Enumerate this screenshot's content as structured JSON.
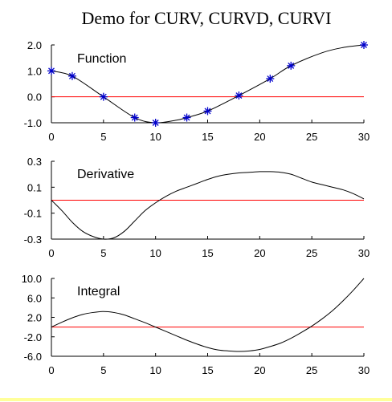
{
  "title": "Demo for CURV, CURVD, CURVI",
  "colors": {
    "axis": "#000000",
    "curve": "#000000",
    "zero_line": "#ff0000",
    "markers": "#0000cc"
  },
  "chart_data": [
    {
      "type": "line",
      "label": "Function",
      "markers": {
        "x": [
          0,
          2,
          5,
          8,
          10,
          13,
          15,
          18,
          21,
          23,
          30
        ],
        "y": [
          1.0,
          0.8,
          0.0,
          -0.8,
          -1.0,
          -0.8,
          -0.55,
          0.05,
          0.7,
          1.2,
          2.0
        ]
      },
      "xlim": [
        0,
        30
      ],
      "ylim": [
        -1,
        2
      ],
      "xticks": [
        "0",
        "5",
        "10",
        "15",
        "20",
        "25",
        "30"
      ],
      "yticks": [
        "-1.0",
        "0.0",
        "1.0",
        "2.0"
      ],
      "ytick_values": [
        -1,
        0,
        1,
        2
      ],
      "curve": {
        "x": [
          0,
          2,
          5,
          8,
          10,
          12,
          13,
          15,
          18,
          21,
          23,
          26,
          28,
          30
        ],
        "y": [
          1.0,
          0.8,
          0.0,
          -0.8,
          -1.0,
          -0.9,
          -0.8,
          -0.55,
          0.05,
          0.7,
          1.2,
          1.7,
          1.9,
          2.0
        ]
      }
    },
    {
      "type": "line",
      "label": "Derivative",
      "xlim": [
        0,
        30
      ],
      "ylim": [
        -0.3,
        0.3
      ],
      "xticks": [
        "0",
        "5",
        "10",
        "15",
        "20",
        "25",
        "30"
      ],
      "yticks": [
        "-0.3",
        "-0.1",
        "0.1",
        "0.3"
      ],
      "ytick_values": [
        -0.3,
        -0.1,
        0.1,
        0.3
      ],
      "curve": {
        "x": [
          0,
          1,
          2,
          3,
          4,
          5,
          6,
          7,
          8,
          9,
          10,
          11,
          12,
          13,
          14,
          15,
          16,
          17,
          18,
          19,
          20,
          21,
          22,
          23,
          24,
          25,
          26,
          27,
          28,
          29,
          30
        ],
        "y": [
          0.0,
          -0.08,
          -0.17,
          -0.24,
          -0.28,
          -0.3,
          -0.29,
          -0.24,
          -0.16,
          -0.08,
          -0.02,
          0.03,
          0.07,
          0.1,
          0.13,
          0.16,
          0.185,
          0.2,
          0.21,
          0.215,
          0.22,
          0.22,
          0.215,
          0.2,
          0.17,
          0.14,
          0.12,
          0.1,
          0.08,
          0.05,
          0.01
        ]
      }
    },
    {
      "type": "line",
      "label": "Integral",
      "xlim": [
        0,
        30
      ],
      "ylim": [
        -6,
        10
      ],
      "xticks": [
        "0",
        "5",
        "10",
        "15",
        "20",
        "25",
        "30"
      ],
      "yticks": [
        "-6.0",
        "-2.0",
        "2.0",
        "6.0",
        "10.0"
      ],
      "ytick_values": [
        -6,
        -2,
        2,
        6,
        10
      ],
      "curve": {
        "x": [
          0,
          1,
          2,
          3,
          4,
          5,
          6,
          7,
          8,
          9,
          10,
          11,
          12,
          13,
          14,
          15,
          16,
          17,
          18,
          19,
          20,
          21,
          22,
          23,
          24,
          25,
          26,
          27,
          28,
          29,
          30
        ],
        "y": [
          0.0,
          1.0,
          1.9,
          2.6,
          3.0,
          3.2,
          3.0,
          2.5,
          1.7,
          0.9,
          0.0,
          -0.9,
          -1.8,
          -2.7,
          -3.5,
          -4.2,
          -4.7,
          -4.9,
          -5.0,
          -4.9,
          -4.6,
          -4.0,
          -3.3,
          -2.3,
          -1.1,
          0.2,
          1.7,
          3.4,
          5.4,
          7.6,
          10.0
        ]
      }
    }
  ]
}
